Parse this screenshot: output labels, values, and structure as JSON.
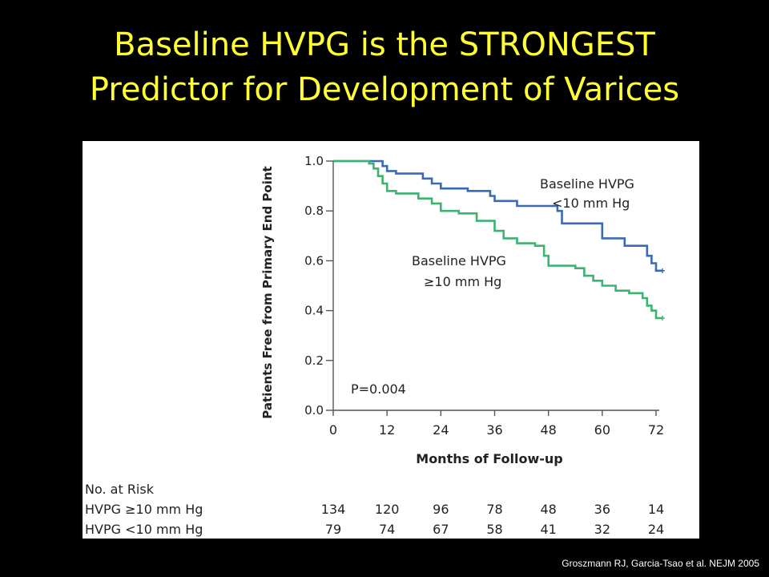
{
  "slide": {
    "title_line1": "Baseline HVPG is the STRONGEST",
    "title_line2": "Predictor for Development of Varices",
    "citation": "Groszmann RJ, Garcia-Tsao et al. NEJM 2005",
    "title_color": "#ffff33",
    "background_color": "#000000"
  },
  "chart_data": {
    "type": "line",
    "subtype": "kaplan-meier step",
    "title": "",
    "xlabel": "Months of Follow-up",
    "ylabel": "Patients Free from Primary End Point",
    "xlim": [
      0,
      72
    ],
    "ylim": [
      0.0,
      1.0
    ],
    "xticks": [
      0,
      12,
      24,
      36,
      48,
      60,
      72
    ],
    "yticks": [
      0.0,
      0.2,
      0.4,
      0.6,
      0.8,
      1.0
    ],
    "ytick_labels": [
      "0.0",
      "0.2",
      "0.4",
      "0.6",
      "0.8",
      "1.0"
    ],
    "grid": false,
    "annotation_p": "P=0.004",
    "series": [
      {
        "key": "low",
        "name_line1": "Baseline HVPG",
        "name_line2": "<10 mm Hg",
        "color": "#3a6ab3",
        "x": [
          0,
          9,
          11,
          12,
          14,
          20,
          22,
          24,
          30,
          35,
          36,
          41,
          50,
          51,
          60,
          65,
          66,
          70,
          71,
          72
        ],
        "y": [
          1.0,
          1.0,
          0.98,
          0.96,
          0.95,
          0.93,
          0.91,
          0.89,
          0.88,
          0.86,
          0.84,
          0.82,
          0.8,
          0.75,
          0.69,
          0.66,
          0.66,
          0.62,
          0.59,
          0.56
        ]
      },
      {
        "key": "high",
        "name_line1": "Baseline HVPG",
        "name_line2": "≥10 mm Hg",
        "color": "#3cb371",
        "x": [
          0,
          8,
          9,
          10,
          11,
          12,
          14,
          19,
          22,
          24,
          28,
          32,
          36,
          38,
          41,
          45,
          47,
          48,
          54,
          56,
          58,
          60,
          63,
          66,
          69,
          70,
          71,
          72
        ],
        "y": [
          1.0,
          0.99,
          0.97,
          0.94,
          0.91,
          0.88,
          0.87,
          0.85,
          0.83,
          0.8,
          0.79,
          0.76,
          0.72,
          0.69,
          0.67,
          0.66,
          0.62,
          0.58,
          0.57,
          0.54,
          0.52,
          0.5,
          0.48,
          0.47,
          0.45,
          0.42,
          0.4,
          0.37
        ]
      }
    ],
    "risk_table": {
      "title": "No. at Risk",
      "times": [
        0,
        12,
        24,
        36,
        48,
        60,
        72
      ],
      "rows": [
        {
          "label": "HVPG ≥10 mm Hg",
          "values": [
            134,
            120,
            96,
            78,
            48,
            36,
            14
          ]
        },
        {
          "label": "HVPG <10 mm Hg",
          "values": [
            79,
            74,
            67,
            58,
            41,
            32,
            24
          ]
        }
      ]
    }
  }
}
